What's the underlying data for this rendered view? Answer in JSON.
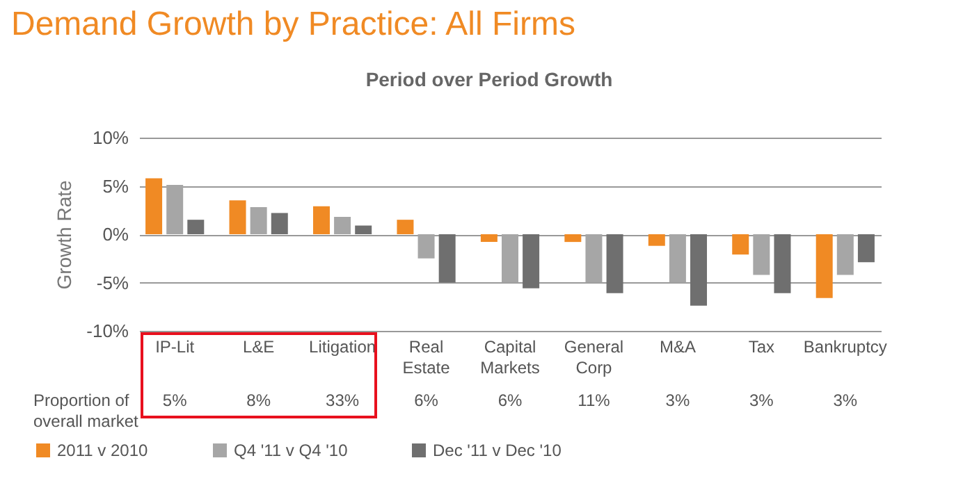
{
  "chart_data": {
    "type": "bar",
    "title": "Demand Growth by Practice: All Firms",
    "subtitle": "Period over Period Growth",
    "ylabel": "Growth Rate",
    "categories": [
      "IP-Lit",
      "L&E",
      "Litigation",
      "Real Estate",
      "Capital Markets",
      "General Corp",
      "M&A",
      "Tax",
      "Bankruptcy"
    ],
    "series": [
      {
        "name": "2011 v 2010",
        "color": "#f08a24",
        "values": [
          5.8,
          3.5,
          2.9,
          1.5,
          -0.8,
          -0.8,
          -1.2,
          -2.1,
          -6.6
        ]
      },
      {
        "name": "Q4 '11 v Q4 '10",
        "color": "#a6a6a6",
        "values": [
          5.1,
          2.8,
          1.8,
          -2.5,
          -5.0,
          -5.0,
          -5.0,
          -4.2,
          -4.2
        ]
      },
      {
        "name": "Dec '11 v Dec '10",
        "color": "#6f6f6f",
        "values": [
          1.5,
          2.2,
          0.9,
          -5.0,
          -5.6,
          -6.1,
          -7.4,
          -6.1,
          -2.9
        ]
      }
    ],
    "ylim": [
      -10,
      10
    ],
    "yticks": [
      {
        "value": -10,
        "label": "-10%"
      },
      {
        "value": -5,
        "label": "-5%"
      },
      {
        "value": 0,
        "label": "0%"
      },
      {
        "value": 5,
        "label": "5%"
      },
      {
        "value": 10,
        "label": "10%"
      }
    ],
    "grid": "y",
    "legend": "bottom left",
    "annotations": [
      "Proportion of overall market",
      "5%",
      "8%",
      "33%",
      "6%",
      "6%",
      "11%",
      "3%",
      "3%",
      "3%"
    ]
  }
}
